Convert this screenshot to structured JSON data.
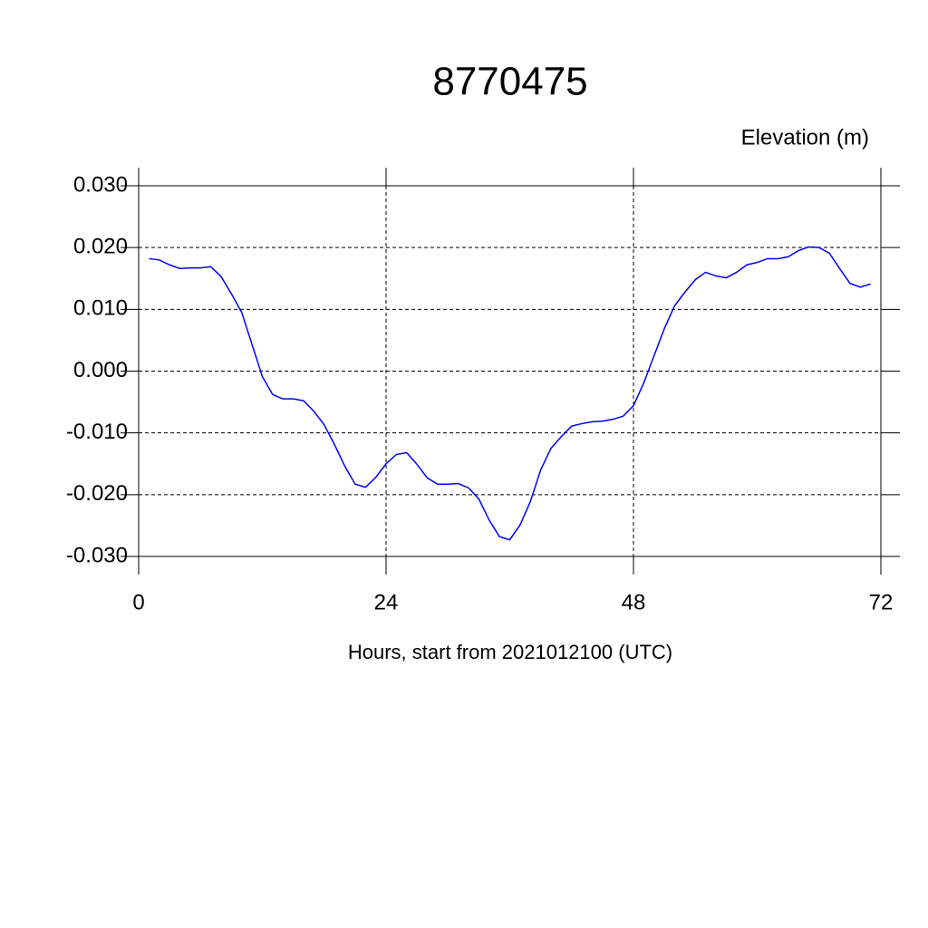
{
  "chart_data": {
    "type": "line",
    "title": "8770475",
    "ylabel": "Elevation (m)",
    "xlabel": "Hours, start from 2021012100 (UTC)",
    "x": [
      1,
      2,
      3,
      4,
      5,
      6,
      7,
      8,
      9,
      10,
      11,
      12,
      13,
      14,
      15,
      16,
      17,
      18,
      19,
      20,
      21,
      22,
      23,
      24,
      25,
      26,
      27,
      28,
      29,
      30,
      31,
      32,
      33,
      34,
      35,
      36,
      37,
      38,
      39,
      40,
      41,
      42,
      43,
      44,
      45,
      46,
      47,
      48,
      49,
      50,
      51,
      52,
      53,
      54,
      55,
      56,
      57,
      58,
      59,
      60,
      61,
      62,
      63,
      64,
      65,
      66,
      67,
      68,
      69,
      70,
      71
    ],
    "series": [
      {
        "name": "Elevation",
        "color": "#0000ff",
        "values": [
          0.0182,
          0.018,
          0.0172,
          0.0166,
          0.0167,
          0.0167,
          0.0169,
          0.0153,
          0.0125,
          0.0095,
          0.0043,
          -0.0009,
          -0.0038,
          -0.0045,
          -0.0045,
          -0.0048,
          -0.0065,
          -0.0087,
          -0.0119,
          -0.0154,
          -0.0183,
          -0.0188,
          -0.0172,
          -0.015,
          -0.0135,
          -0.0132,
          -0.0151,
          -0.0173,
          -0.0183,
          -0.0183,
          -0.0182,
          -0.0189,
          -0.0207,
          -0.0241,
          -0.0268,
          -0.0273,
          -0.0249,
          -0.0211,
          -0.016,
          -0.0125,
          -0.0106,
          -0.0089,
          -0.0085,
          -0.0082,
          -0.0081,
          -0.0078,
          -0.0073,
          -0.0056,
          -0.0019,
          0.0025,
          0.0069,
          0.0106,
          0.0128,
          0.0148,
          0.016,
          0.0154,
          0.0151,
          0.016,
          0.0172,
          0.0176,
          0.0182,
          0.0182,
          0.0185,
          0.0195,
          0.0201,
          0.02,
          0.0191,
          0.0166,
          0.0142,
          0.0136,
          0.0141
        ]
      }
    ],
    "xlim": [
      0,
      72
    ],
    "xticks": [
      0,
      24,
      48,
      72
    ],
    "ylim": [
      -0.03,
      0.03
    ],
    "yticks": [
      {
        "value": -0.03,
        "label": "-0.030"
      },
      {
        "value": -0.02,
        "label": "-0.020"
      },
      {
        "value": -0.01,
        "label": "-0.010"
      },
      {
        "value": 0,
        "label": "0.000"
      },
      {
        "value": 0.01,
        "label": "0.010"
      },
      {
        "value": 0.02,
        "label": "0.020"
      },
      {
        "value": 0.03,
        "label": "0.030"
      }
    ],
    "grid": true
  }
}
